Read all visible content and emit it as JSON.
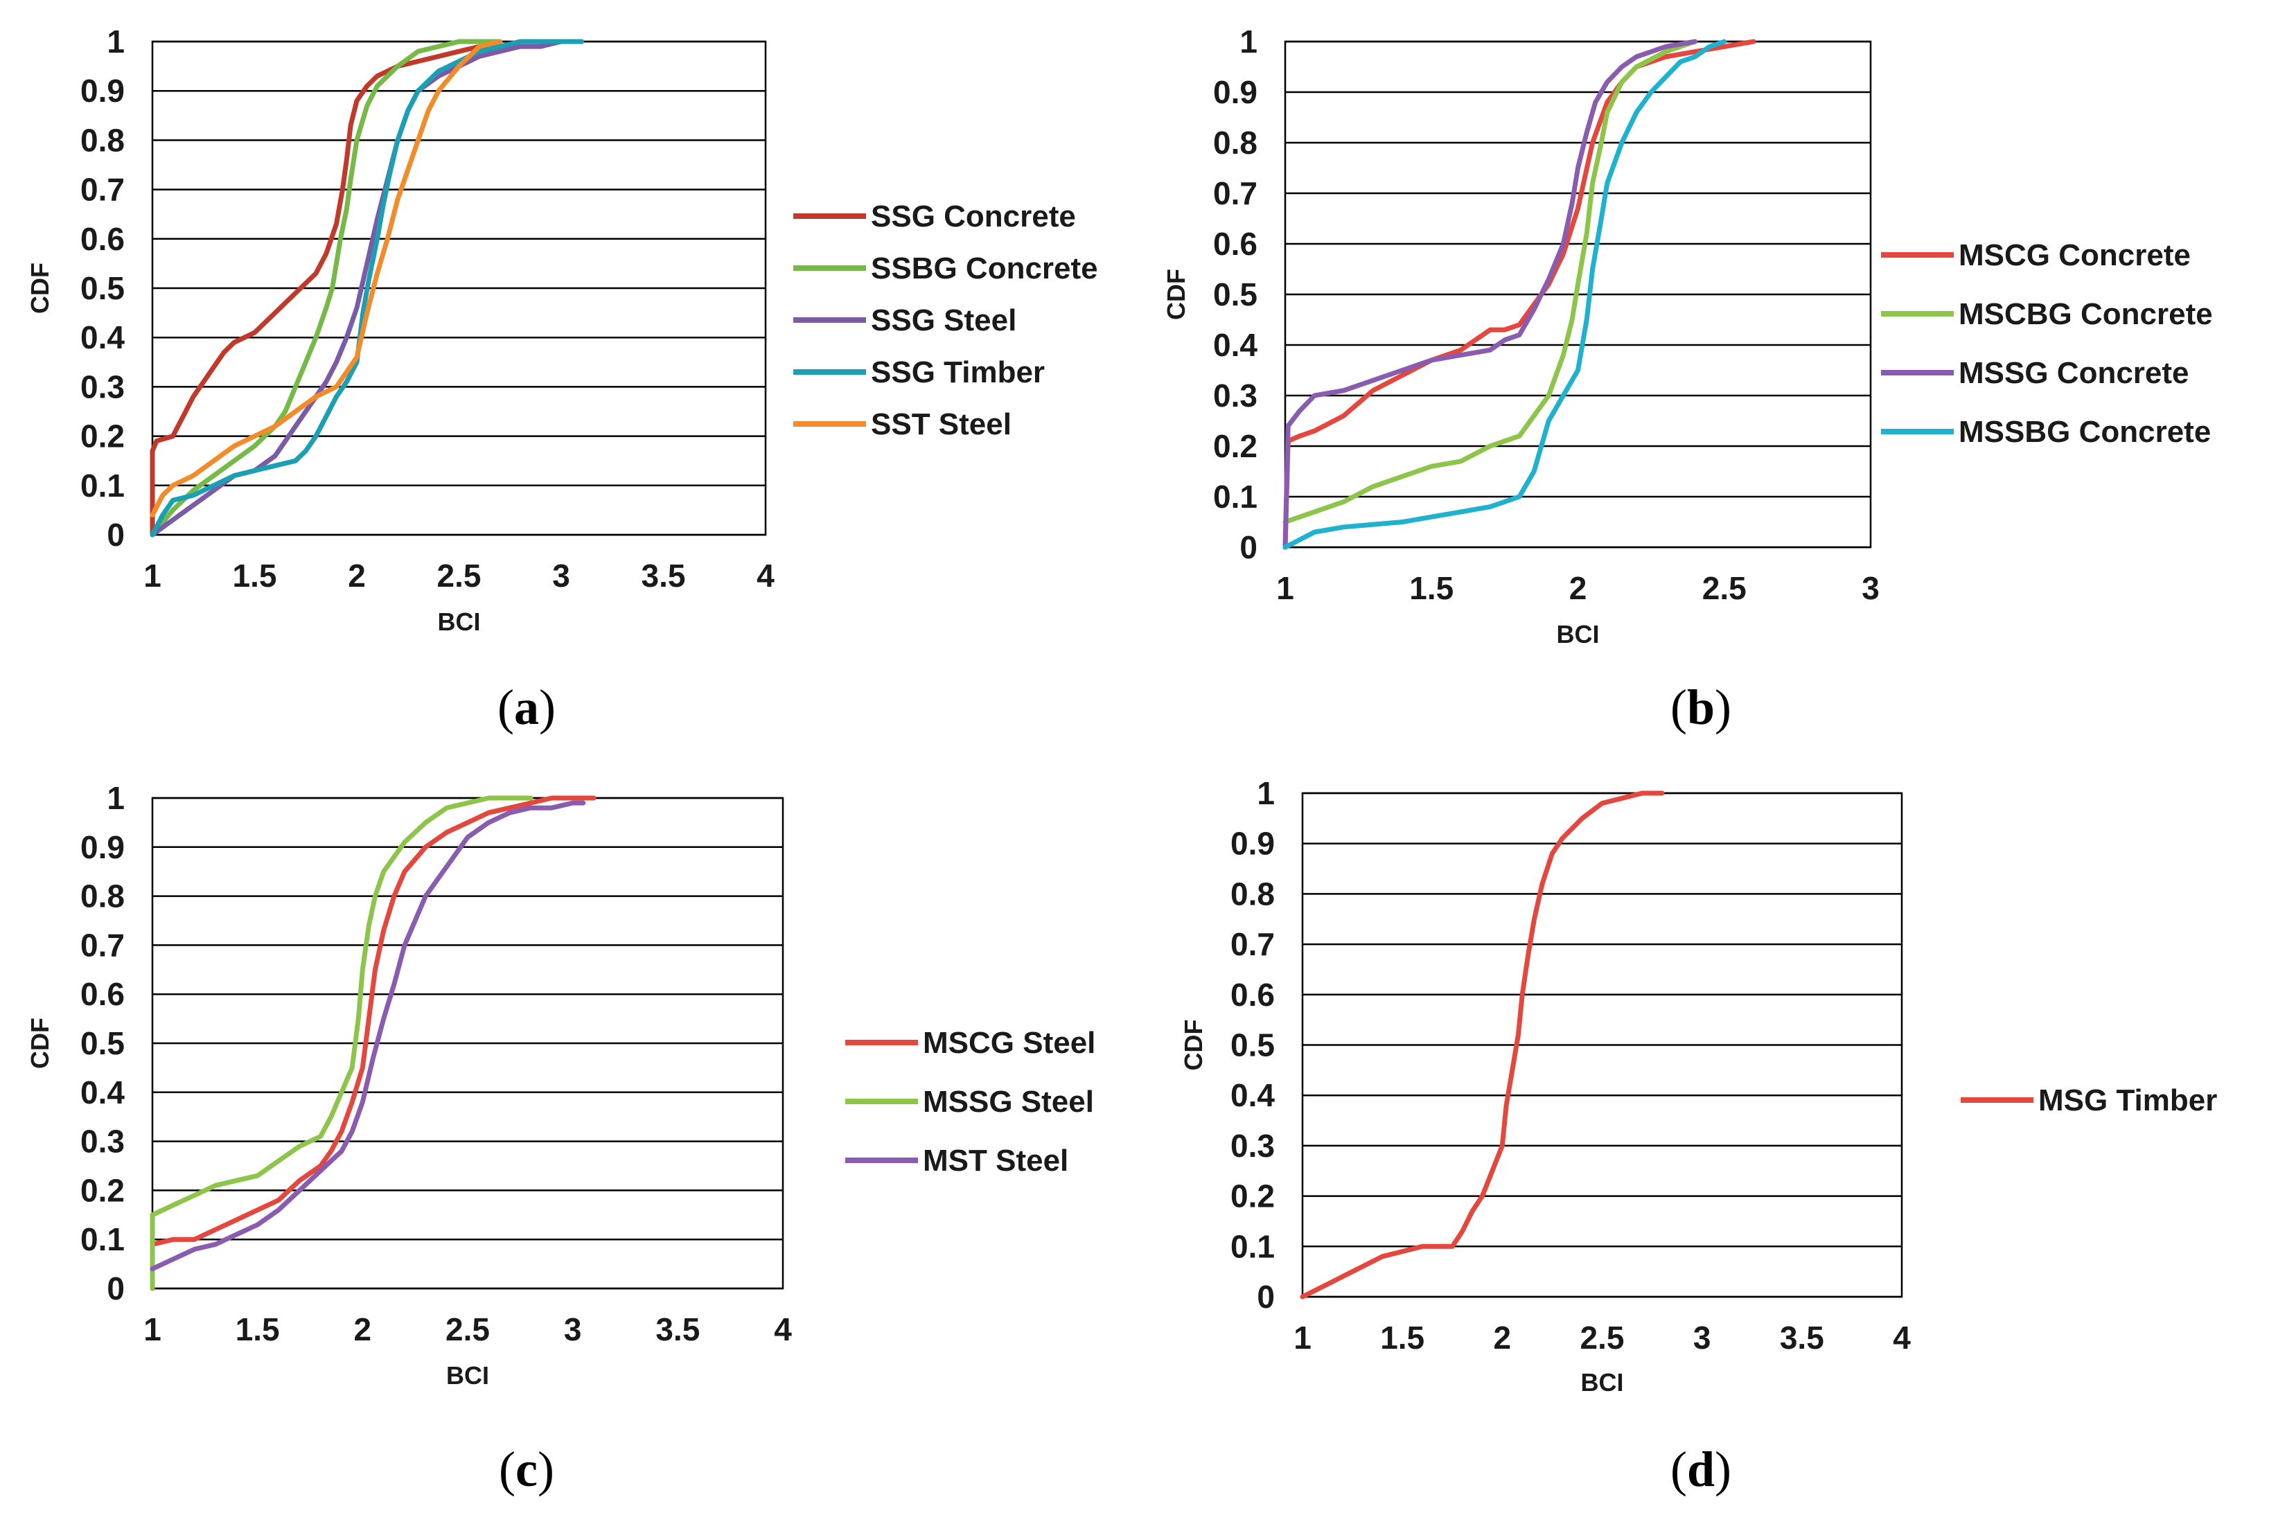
{
  "chart_data": [
    {
      "id": "a",
      "type": "line",
      "panel_label": "a",
      "xlabel": "BCI",
      "ylabel": "CDF",
      "xlim": [
        1,
        4
      ],
      "ylim": [
        0,
        1
      ],
      "xticks": [
        "1",
        "1.5",
        "2",
        "2.5",
        "3",
        "3.5",
        "4"
      ],
      "yticks": [
        "0",
        "0.1",
        "0.2",
        "0.3",
        "0.4",
        "0.5",
        "0.6",
        "0.7",
        "0.8",
        "0.9",
        "1"
      ],
      "grid": "horizontal",
      "legend": "right",
      "series": [
        {
          "name": "SSG Concrete",
          "color": "#c0392b",
          "x": [
            1.0,
            1.0,
            1.02,
            1.1,
            1.15,
            1.2,
            1.25,
            1.3,
            1.35,
            1.4,
            1.45,
            1.5,
            1.6,
            1.7,
            1.8,
            1.85,
            1.9,
            1.93,
            1.95,
            1.97,
            2.0,
            2.05,
            2.1,
            2.2,
            2.3,
            2.4,
            2.5,
            2.6,
            2.7,
            2.8,
            3.0,
            3.1
          ],
          "y": [
            0.0,
            0.17,
            0.19,
            0.2,
            0.24,
            0.28,
            0.31,
            0.34,
            0.37,
            0.39,
            0.4,
            0.41,
            0.45,
            0.49,
            0.53,
            0.57,
            0.63,
            0.7,
            0.76,
            0.83,
            0.88,
            0.91,
            0.93,
            0.95,
            0.96,
            0.97,
            0.98,
            0.99,
            0.99,
            1.0,
            1.0,
            1.0
          ]
        },
        {
          "name": "SSBG Concrete",
          "color": "#76b947",
          "x": [
            1.0,
            1.1,
            1.2,
            1.3,
            1.4,
            1.5,
            1.6,
            1.65,
            1.7,
            1.75,
            1.8,
            1.85,
            1.88,
            1.9,
            1.92,
            1.95,
            1.97,
            2.0,
            2.05,
            2.1,
            2.2,
            2.3,
            2.4,
            2.5,
            2.6,
            2.7
          ],
          "y": [
            0.0,
            0.05,
            0.09,
            0.12,
            0.15,
            0.18,
            0.22,
            0.25,
            0.3,
            0.35,
            0.4,
            0.46,
            0.5,
            0.55,
            0.6,
            0.66,
            0.72,
            0.8,
            0.87,
            0.91,
            0.95,
            0.98,
            0.99,
            1.0,
            1.0,
            1.0
          ]
        },
        {
          "name": "SSG Steel",
          "color": "#7b5aa6",
          "x": [
            1.0,
            1.1,
            1.2,
            1.3,
            1.4,
            1.5,
            1.6,
            1.65,
            1.7,
            1.75,
            1.8,
            1.85,
            1.9,
            1.95,
            2.0,
            2.05,
            2.1,
            2.15,
            2.2,
            2.25,
            2.3,
            2.4,
            2.5,
            2.6,
            2.7,
            2.8,
            2.9,
            3.0
          ],
          "y": [
            0.0,
            0.03,
            0.06,
            0.09,
            0.12,
            0.13,
            0.16,
            0.19,
            0.22,
            0.25,
            0.28,
            0.31,
            0.35,
            0.4,
            0.46,
            0.55,
            0.64,
            0.72,
            0.8,
            0.86,
            0.9,
            0.93,
            0.95,
            0.97,
            0.98,
            0.99,
            0.99,
            1.0
          ]
        },
        {
          "name": "SSG Timber",
          "color": "#1a9fb5",
          "x": [
            1.0,
            1.05,
            1.1,
            1.2,
            1.3,
            1.4,
            1.5,
            1.6,
            1.7,
            1.75,
            1.8,
            1.85,
            1.9,
            1.95,
            2.0,
            2.03,
            2.06,
            2.1,
            2.13,
            2.16,
            2.2,
            2.25,
            2.3,
            2.4,
            2.5,
            2.6,
            2.7,
            2.8,
            2.9,
            3.0,
            3.1
          ],
          "y": [
            0.0,
            0.04,
            0.07,
            0.08,
            0.1,
            0.12,
            0.13,
            0.14,
            0.15,
            0.17,
            0.2,
            0.24,
            0.28,
            0.31,
            0.35,
            0.45,
            0.52,
            0.6,
            0.67,
            0.73,
            0.8,
            0.86,
            0.9,
            0.94,
            0.96,
            0.98,
            0.99,
            1.0,
            1.0,
            1.0,
            1.0
          ]
        },
        {
          "name": "SST Steel",
          "color": "#f28c2a",
          "x": [
            1.0,
            1.05,
            1.1,
            1.2,
            1.3,
            1.4,
            1.5,
            1.6,
            1.7,
            1.8,
            1.9,
            1.95,
            2.0,
            2.05,
            2.1,
            2.15,
            2.2,
            2.25,
            2.3,
            2.35,
            2.4,
            2.5,
            2.6,
            2.7
          ],
          "y": [
            0.04,
            0.08,
            0.1,
            0.12,
            0.15,
            0.18,
            0.2,
            0.22,
            0.25,
            0.28,
            0.3,
            0.33,
            0.36,
            0.45,
            0.53,
            0.6,
            0.68,
            0.74,
            0.8,
            0.86,
            0.9,
            0.95,
            0.99,
            1.0
          ]
        }
      ]
    },
    {
      "id": "b",
      "type": "line",
      "panel_label": "b",
      "xlabel": "BCI",
      "ylabel": "CDF",
      "xlim": [
        1,
        3
      ],
      "ylim": [
        0,
        1
      ],
      "xticks": [
        "1",
        "1.5",
        "2",
        "2.5",
        "3"
      ],
      "yticks": [
        "0",
        "0.1",
        "0.2",
        "0.3",
        "0.4",
        "0.5",
        "0.6",
        "0.7",
        "0.8",
        "0.9",
        "1"
      ],
      "grid": "horizontal",
      "legend": "right",
      "series": [
        {
          "name": "MSCG Concrete",
          "color": "#e4473d",
          "x": [
            1.0,
            1.01,
            1.05,
            1.1,
            1.2,
            1.3,
            1.4,
            1.5,
            1.6,
            1.7,
            1.75,
            1.8,
            1.85,
            1.9,
            1.95,
            2.0,
            2.05,
            2.1,
            2.15,
            2.2,
            2.3,
            2.4,
            2.5,
            2.6
          ],
          "y": [
            0.0,
            0.21,
            0.22,
            0.23,
            0.26,
            0.31,
            0.34,
            0.37,
            0.39,
            0.43,
            0.43,
            0.44,
            0.48,
            0.52,
            0.58,
            0.67,
            0.8,
            0.88,
            0.92,
            0.95,
            0.97,
            0.98,
            0.99,
            1.0
          ]
        },
        {
          "name": "MSCBG Concrete",
          "color": "#8dc54a",
          "x": [
            1.0,
            1.05,
            1.1,
            1.2,
            1.3,
            1.4,
            1.5,
            1.6,
            1.7,
            1.75,
            1.8,
            1.85,
            1.9,
            1.95,
            1.98,
            2.0,
            2.03,
            2.05,
            2.08,
            2.1,
            2.15,
            2.2,
            2.3,
            2.4
          ],
          "y": [
            0.05,
            0.06,
            0.07,
            0.09,
            0.12,
            0.14,
            0.16,
            0.17,
            0.2,
            0.21,
            0.22,
            0.26,
            0.3,
            0.38,
            0.45,
            0.52,
            0.62,
            0.72,
            0.8,
            0.86,
            0.92,
            0.95,
            0.98,
            1.0
          ]
        },
        {
          "name": "MSSG Concrete",
          "color": "#8a5cb0",
          "x": [
            1.0,
            1.01,
            1.05,
            1.1,
            1.2,
            1.3,
            1.4,
            1.5,
            1.6,
            1.7,
            1.75,
            1.8,
            1.85,
            1.9,
            1.95,
            1.98,
            2.0,
            2.03,
            2.06,
            2.1,
            2.15,
            2.2,
            2.3,
            2.4
          ],
          "y": [
            0.0,
            0.24,
            0.27,
            0.3,
            0.31,
            0.33,
            0.35,
            0.37,
            0.38,
            0.39,
            0.41,
            0.42,
            0.47,
            0.53,
            0.6,
            0.68,
            0.75,
            0.82,
            0.88,
            0.92,
            0.95,
            0.97,
            0.99,
            1.0
          ]
        },
        {
          "name": "MSSBG Concrete",
          "color": "#1fb2cf",
          "x": [
            1.0,
            1.1,
            1.2,
            1.3,
            1.4,
            1.5,
            1.6,
            1.7,
            1.75,
            1.8,
            1.85,
            1.9,
            1.95,
            2.0,
            2.03,
            2.05,
            2.08,
            2.1,
            2.15,
            2.2,
            2.25,
            2.3,
            2.35,
            2.4,
            2.45,
            2.5
          ],
          "y": [
            0.0,
            0.03,
            0.04,
            0.045,
            0.05,
            0.06,
            0.07,
            0.08,
            0.09,
            0.1,
            0.15,
            0.25,
            0.3,
            0.35,
            0.45,
            0.55,
            0.65,
            0.72,
            0.8,
            0.86,
            0.9,
            0.93,
            0.96,
            0.97,
            0.99,
            1.0
          ]
        }
      ]
    },
    {
      "id": "c",
      "type": "line",
      "panel_label": "c",
      "xlabel": "BCI",
      "ylabel": "CDF",
      "xlim": [
        1,
        4
      ],
      "ylim": [
        0,
        1
      ],
      "xticks": [
        "1",
        "1.5",
        "2",
        "2.5",
        "3",
        "3.5",
        "4"
      ],
      "yticks": [
        "0",
        "0.1",
        "0.2",
        "0.3",
        "0.4",
        "0.5",
        "0.6",
        "0.7",
        "0.8",
        "0.9",
        "1"
      ],
      "grid": "horizontal",
      "legend": "right",
      "series": [
        {
          "name": "MSCG Steel",
          "color": "#e4473d",
          "x": [
            1.0,
            1.0,
            1.1,
            1.2,
            1.3,
            1.4,
            1.5,
            1.6,
            1.7,
            1.8,
            1.85,
            1.9,
            1.95,
            2.0,
            2.03,
            2.06,
            2.1,
            2.15,
            2.2,
            2.3,
            2.4,
            2.5,
            2.6,
            2.7,
            2.8,
            2.9,
            3.0,
            3.1
          ],
          "y": [
            0.0,
            0.09,
            0.1,
            0.1,
            0.12,
            0.14,
            0.16,
            0.18,
            0.22,
            0.25,
            0.28,
            0.32,
            0.38,
            0.45,
            0.55,
            0.65,
            0.73,
            0.8,
            0.85,
            0.9,
            0.93,
            0.95,
            0.97,
            0.98,
            0.99,
            1.0,
            1.0,
            1.0
          ]
        },
        {
          "name": "MSSG Steel",
          "color": "#8dc54a",
          "x": [
            1.0,
            1.0,
            1.1,
            1.2,
            1.3,
            1.4,
            1.5,
            1.6,
            1.7,
            1.8,
            1.85,
            1.9,
            1.95,
            1.98,
            2.0,
            2.03,
            2.06,
            2.1,
            2.15,
            2.2,
            2.3,
            2.4,
            2.5,
            2.6,
            2.7,
            2.8
          ],
          "y": [
            0.0,
            0.15,
            0.17,
            0.19,
            0.21,
            0.22,
            0.23,
            0.26,
            0.29,
            0.31,
            0.35,
            0.4,
            0.45,
            0.55,
            0.65,
            0.74,
            0.8,
            0.85,
            0.88,
            0.91,
            0.95,
            0.98,
            0.99,
            1.0,
            1.0,
            1.0
          ]
        },
        {
          "name": "MST Steel",
          "color": "#8a5cb0",
          "x": [
            1.0,
            1.1,
            1.2,
            1.3,
            1.4,
            1.5,
            1.6,
            1.7,
            1.8,
            1.9,
            1.95,
            2.0,
            2.05,
            2.1,
            2.15,
            2.2,
            2.25,
            2.3,
            2.4,
            2.5,
            2.6,
            2.7,
            2.8,
            2.9,
            3.0,
            3.05
          ],
          "y": [
            0.04,
            0.06,
            0.08,
            0.09,
            0.11,
            0.13,
            0.16,
            0.2,
            0.24,
            0.28,
            0.32,
            0.38,
            0.47,
            0.55,
            0.62,
            0.7,
            0.75,
            0.8,
            0.86,
            0.92,
            0.95,
            0.97,
            0.98,
            0.98,
            0.99,
            0.99
          ]
        }
      ]
    },
    {
      "id": "d",
      "type": "line",
      "panel_label": "d",
      "xlabel": "BCI",
      "ylabel": "CDF",
      "xlim": [
        1,
        4
      ],
      "ylim": [
        0,
        1
      ],
      "xticks": [
        "1",
        "1.5",
        "2",
        "2.5",
        "3",
        "3.5",
        "4"
      ],
      "yticks": [
        "0",
        "0.1",
        "0.2",
        "0.3",
        "0.4",
        "0.5",
        "0.6",
        "0.7",
        "0.8",
        "0.9",
        "1"
      ],
      "grid": "horizontal",
      "legend": "right",
      "series": [
        {
          "name": "MSG Timber",
          "color": "#e4473d",
          "x": [
            1.0,
            1.05,
            1.1,
            1.15,
            1.2,
            1.3,
            1.4,
            1.5,
            1.6,
            1.7,
            1.75,
            1.8,
            1.85,
            1.9,
            1.95,
            2.0,
            2.02,
            2.05,
            2.08,
            2.1,
            2.13,
            2.16,
            2.2,
            2.25,
            2.3,
            2.4,
            2.5,
            2.6,
            2.7,
            2.8
          ],
          "y": [
            0.0,
            0.01,
            0.02,
            0.03,
            0.04,
            0.06,
            0.08,
            0.09,
            0.1,
            0.1,
            0.1,
            0.13,
            0.17,
            0.2,
            0.25,
            0.3,
            0.38,
            0.45,
            0.52,
            0.6,
            0.68,
            0.75,
            0.82,
            0.88,
            0.91,
            0.95,
            0.98,
            0.99,
            1.0,
            1.0
          ]
        }
      ]
    }
  ]
}
